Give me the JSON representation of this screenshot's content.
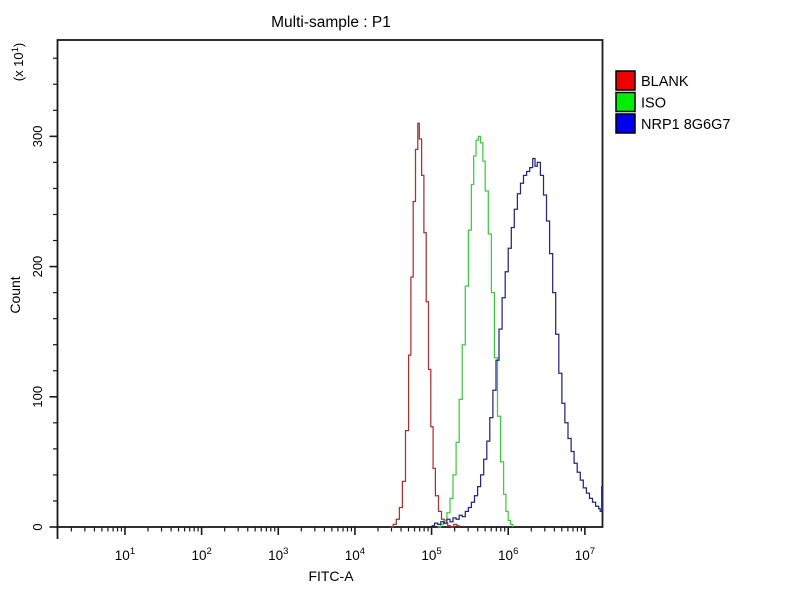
{
  "window": {
    "background": "#ffffff"
  },
  "chart_data": {
    "type": "line",
    "subtype": "flow-cytometry-histogram-overlay",
    "title": "Multi-sample : P1",
    "xlabel": "FITC-A",
    "ylabel": "Count",
    "y_axis_multiplier": {
      "base": "(x 10",
      "exp": "1",
      "close": ")"
    },
    "x_scale": "log10",
    "x_range_log": [
      0.12,
      7.23
    ],
    "ylim": [
      0,
      374
    ],
    "x_major_tick_exponents": [
      1,
      2,
      3,
      4,
      5,
      6,
      7
    ],
    "x_tick_base": "10",
    "y_major_ticks": [
      0,
      100,
      200,
      300
    ],
    "y_minor_step": 20,
    "grid": false,
    "legend_position": "right-outside",
    "frame_color": "#1a1a1a",
    "series": [
      {
        "name": "BLANK",
        "line_color": "#a83232",
        "legend_color": "#ee0000",
        "points": [
          [
            4.46,
            0
          ],
          [
            4.5,
            2
          ],
          [
            4.54,
            6
          ],
          [
            4.58,
            15
          ],
          [
            4.62,
            35
          ],
          [
            4.66,
            74
          ],
          [
            4.7,
            132
          ],
          [
            4.73,
            192
          ],
          [
            4.76,
            250
          ],
          [
            4.79,
            290
          ],
          [
            4.82,
            310
          ],
          [
            4.84,
            298
          ],
          [
            4.87,
            270
          ],
          [
            4.9,
            226
          ],
          [
            4.93,
            173
          ],
          [
            4.96,
            121
          ],
          [
            4.99,
            77
          ],
          [
            5.02,
            45
          ],
          [
            5.05,
            24
          ],
          [
            5.09,
            12
          ],
          [
            5.13,
            6
          ],
          [
            5.17,
            3
          ],
          [
            5.21,
            1
          ],
          [
            5.25,
            0
          ],
          [
            5.29,
            2
          ],
          [
            5.33,
            1
          ],
          [
            5.36,
            0
          ]
        ]
      },
      {
        "name": "ISO",
        "line_color": "#3dcc3d",
        "legend_color": "#00ee00",
        "points": [
          [
            5.08,
            0
          ],
          [
            5.12,
            2
          ],
          [
            5.16,
            5
          ],
          [
            5.2,
            11
          ],
          [
            5.24,
            22
          ],
          [
            5.28,
            40
          ],
          [
            5.32,
            65
          ],
          [
            5.36,
            98
          ],
          [
            5.4,
            140
          ],
          [
            5.44,
            185
          ],
          [
            5.48,
            228
          ],
          [
            5.52,
            263
          ],
          [
            5.55,
            285
          ],
          [
            5.58,
            297
          ],
          [
            5.61,
            300
          ],
          [
            5.64,
            295
          ],
          [
            5.67,
            281
          ],
          [
            5.7,
            258
          ],
          [
            5.74,
            225
          ],
          [
            5.78,
            180
          ],
          [
            5.82,
            130
          ],
          [
            5.86,
            85
          ],
          [
            5.9,
            50
          ],
          [
            5.94,
            25
          ],
          [
            5.97,
            12
          ],
          [
            6.0,
            5
          ],
          [
            6.03,
            2
          ],
          [
            6.06,
            0
          ]
        ]
      },
      {
        "name": "NRP1 8G6G7",
        "line_color": "#26267d",
        "legend_color": "#0000ee",
        "points": [
          [
            5.0,
            1
          ],
          [
            5.04,
            3
          ],
          [
            5.08,
            2
          ],
          [
            5.12,
            4
          ],
          [
            5.16,
            3
          ],
          [
            5.2,
            6
          ],
          [
            5.24,
            4
          ],
          [
            5.28,
            7
          ],
          [
            5.32,
            6
          ],
          [
            5.36,
            9
          ],
          [
            5.4,
            8
          ],
          [
            5.44,
            12
          ],
          [
            5.48,
            15
          ],
          [
            5.52,
            19
          ],
          [
            5.56,
            24
          ],
          [
            5.6,
            31
          ],
          [
            5.64,
            40
          ],
          [
            5.68,
            52
          ],
          [
            5.72,
            66
          ],
          [
            5.76,
            84
          ],
          [
            5.8,
            105
          ],
          [
            5.84,
            128
          ],
          [
            5.88,
            152
          ],
          [
            5.92,
            176
          ],
          [
            5.96,
            196
          ],
          [
            6.0,
            214
          ],
          [
            6.04,
            230
          ],
          [
            6.08,
            244
          ],
          [
            6.12,
            256
          ],
          [
            6.16,
            264
          ],
          [
            6.2,
            270
          ],
          [
            6.24,
            273
          ],
          [
            6.28,
            276
          ],
          [
            6.32,
            283
          ],
          [
            6.35,
            277
          ],
          [
            6.38,
            280
          ],
          [
            6.42,
            270
          ],
          [
            6.46,
            255
          ],
          [
            6.5,
            235
          ],
          [
            6.54,
            210
          ],
          [
            6.58,
            180
          ],
          [
            6.62,
            148
          ],
          [
            6.66,
            118
          ],
          [
            6.7,
            95
          ],
          [
            6.74,
            80
          ],
          [
            6.78,
            68
          ],
          [
            6.82,
            58
          ],
          [
            6.86,
            49
          ],
          [
            6.9,
            42
          ],
          [
            6.94,
            36
          ],
          [
            6.98,
            30
          ],
          [
            7.02,
            26
          ],
          [
            7.06,
            22
          ],
          [
            7.1,
            19
          ],
          [
            7.14,
            16
          ],
          [
            7.18,
            14
          ],
          [
            7.2,
            12
          ],
          [
            7.22,
            31
          ],
          [
            7.23,
            12
          ]
        ]
      }
    ]
  }
}
